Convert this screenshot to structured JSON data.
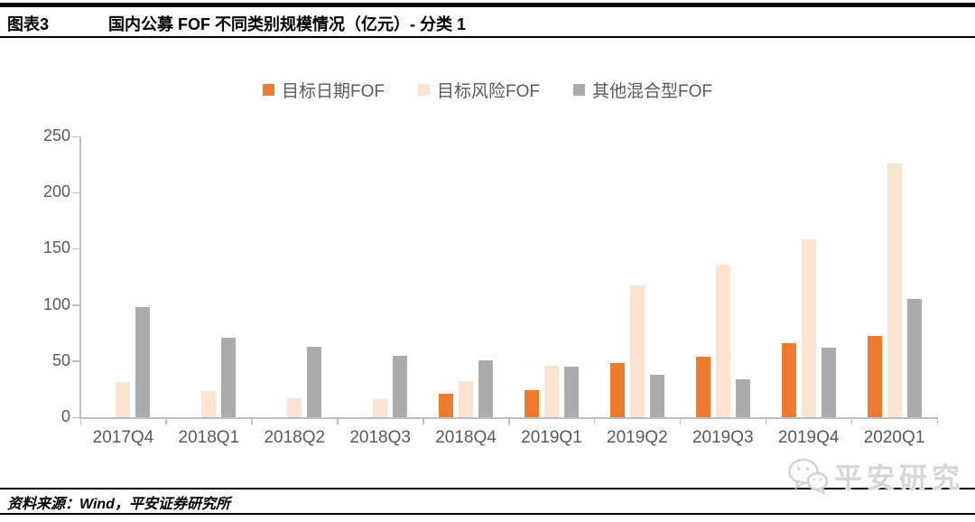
{
  "header": {
    "tag": "图表3",
    "title": "国内公募 FOF 不同类别规模情况（亿元）- 分类 1"
  },
  "legend": [
    {
      "label": "目标日期FOF",
      "color": "#ED7C30"
    },
    {
      "label": "目标风险FOF",
      "color": "#FBE3D2"
    },
    {
      "label": "其他混合型FOF",
      "color": "#ABABAB"
    }
  ],
  "chart_data": {
    "type": "bar",
    "title": "国内公募 FOF 不同类别规模情况（亿元）- 分类 1",
    "categories": [
      "2017Q4",
      "2018Q1",
      "2018Q2",
      "2018Q3",
      "2018Q4",
      "2019Q1",
      "2019Q2",
      "2019Q3",
      "2019Q4",
      "2020Q1"
    ],
    "series": [
      {
        "name": "目标日期FOF",
        "color": "#ED7C30",
        "values": [
          0,
          0,
          0,
          0,
          21,
          24,
          48,
          54,
          66,
          72
        ]
      },
      {
        "name": "目标风险FOF",
        "color": "#FBE3D2",
        "values": [
          31,
          23,
          17,
          16,
          32,
          46,
          117,
          136,
          158,
          226
        ]
      },
      {
        "name": "其他混合型FOF",
        "color": "#ABABAB",
        "values": [
          98,
          71,
          63,
          55,
          51,
          45,
          38,
          34,
          62,
          105
        ]
      }
    ],
    "xlabel": "",
    "ylabel": "",
    "ylim": [
      0,
      250
    ],
    "yticks": [
      0,
      50,
      100,
      150,
      200,
      250
    ],
    "grid": false,
    "legend_position": "top"
  },
  "watermark": {
    "icon": "wechat-icon",
    "label": "平安研究"
  },
  "footer": {
    "source": "资料来源：Wind，平安证券研究所"
  }
}
